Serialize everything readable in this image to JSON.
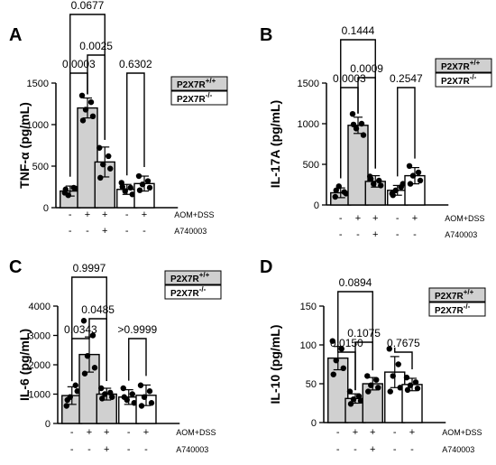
{
  "figure": {
    "legend_entries": [
      "P2X7R+/+",
      "P2X7R-/-"
    ],
    "row_labels": [
      "AOM+DSS",
      "A740003"
    ]
  },
  "chart_data": [
    {
      "panel": "A",
      "type": "bar",
      "ylabel": "TNF-α (pg/mL)",
      "ylim": [
        0,
        1500
      ],
      "yticks": [
        0,
        500,
        1000,
        1500
      ],
      "grid": false,
      "legend": "right",
      "categories": [
        "-/-",
        "+/-",
        "+/+",
        "-/-",
        "+/-",
        "+/+"
      ],
      "treatment_rows": [
        {
          "label": "AOM+DSS",
          "values": [
            "-",
            "+",
            "+",
            "-",
            "+",
            "+"
          ]
        },
        {
          "label": "A740003",
          "values": [
            "-",
            "-",
            "+",
            "-",
            "-",
            "+"
          ]
        }
      ],
      "series": [
        {
          "name": "P2X7R+/+",
          "color": "#d0d0d0",
          "means": [
            200,
            1200,
            550
          ],
          "errors": [
            60,
            120,
            180
          ],
          "points": [
            [
              180,
              240,
              150,
              230,
              220
            ],
            [
              1350,
              1270,
              1180,
              1100,
              1050
            ],
            [
              720,
              620,
              520,
              470,
              360
            ]
          ]
        },
        {
          "name": "P2X7R-/-",
          "color": "#ffffff",
          "means": [
            220,
            290
          ],
          "errors": [
            60,
            90
          ],
          "points": [
            [
              300,
              240,
              200,
              160,
              250
            ],
            [
              380,
              320,
              280,
              240,
              210
            ]
          ]
        }
      ],
      "comparisons": [
        {
          "label": "0.0677",
          "from": 0,
          "to": 2
        },
        {
          "label": "0.0003",
          "from": 0,
          "to": 1
        },
        {
          "label": "0.0025",
          "from": 1,
          "to": 2
        },
        {
          "label": "0.6302",
          "from": 1,
          "to": 2
        }
      ]
    },
    {
      "panel": "B",
      "type": "bar",
      "ylabel": "IL-17A (pg/mL)",
      "ylim": [
        0,
        1500
      ],
      "yticks": [
        0,
        500,
        1000,
        1500
      ],
      "grid": false,
      "legend": "right",
      "categories": [
        "-/-",
        "+/-",
        "+/+",
        "-/-",
        "+/-",
        "+/+"
      ],
      "treatment_rows": [
        {
          "label": "AOM+DSS",
          "values": [
            "-",
            "+",
            "+",
            "-",
            "+",
            "+"
          ]
        },
        {
          "label": "A740003",
          "values": [
            "-",
            "-",
            "+",
            "-",
            "-",
            "+"
          ]
        }
      ],
      "series": [
        {
          "name": "P2X7R+/+",
          "color": "#d0d0d0",
          "means": [
            150,
            980,
            290
          ],
          "errors": [
            60,
            100,
            70
          ],
          "points": [
            [
              100,
              160,
              230,
              140,
              180
            ],
            [
              1120,
              1000,
              940,
              860,
              990
            ],
            [
              350,
              300,
              260,
              240,
              320
            ]
          ]
        },
        {
          "name": "P2X7R-/-",
          "color": "#ffffff",
          "means": [
            180,
            360
          ],
          "errors": [
            60,
            100
          ],
          "points": [
            [
              140,
              220,
              180,
              260,
              120
            ],
            [
              480,
              400,
              360,
              300,
              260
            ]
          ]
        }
      ],
      "comparisons": [
        {
          "label": "0.1444",
          "from": 0,
          "to": 2
        },
        {
          "label": "0.0003",
          "from": 0,
          "to": 1
        },
        {
          "label": "0.0009",
          "from": 1,
          "to": 2
        },
        {
          "label": "0.2547",
          "from": 1,
          "to": 2
        }
      ]
    },
    {
      "panel": "C",
      "type": "bar",
      "ylabel": "IL-6 (pg/mL)",
      "ylim": [
        0,
        4000
      ],
      "yticks": [
        0,
        1000,
        2000,
        3000,
        4000
      ],
      "grid": false,
      "legend": "right",
      "categories": [
        "-/-",
        "+/-",
        "+/+",
        "-/-",
        "+/-",
        "+/+"
      ],
      "treatment_rows": [
        {
          "label": "AOM+DSS",
          "values": [
            "-",
            "+",
            "+",
            "-",
            "+",
            "+"
          ]
        },
        {
          "label": "A740003",
          "values": [
            "-",
            "-",
            "+",
            "-",
            "-",
            "+"
          ]
        }
      ],
      "series": [
        {
          "name": "P2X7R+/+",
          "color": "#d0d0d0",
          "means": [
            950,
            2350,
            1000
          ],
          "errors": [
            300,
            600,
            200
          ],
          "points": [
            [
              600,
              1300,
              900,
              1100,
              800
            ],
            [
              3500,
              3000,
              2300,
              1900,
              1700
            ],
            [
              1200,
              1050,
              1000,
              900,
              850
            ]
          ]
        },
        {
          "name": "P2X7R-/-",
          "color": "#ffffff",
          "means": [
            900,
            960
          ],
          "errors": [
            250,
            350
          ],
          "points": [
            [
              1200,
              1000,
              800,
              700,
              900
            ],
            [
              1300,
              1100,
              900,
              700,
              600
            ]
          ]
        }
      ],
      "comparisons": [
        {
          "label": "0.9997",
          "from": 0,
          "to": 2
        },
        {
          "label": "0.0343",
          "from": 0,
          "to": 1
        },
        {
          "label": "0.0485",
          "from": 1,
          "to": 2
        },
        {
          "label": ">0.9999",
          "from": 1,
          "to": 2
        }
      ]
    },
    {
      "panel": "D",
      "type": "bar",
      "ylabel": "IL-10 (pg/mL)",
      "ylim": [
        0,
        150
      ],
      "yticks": [
        0,
        50,
        100,
        150
      ],
      "grid": false,
      "legend": "right",
      "categories": [
        "-/-",
        "+/-",
        "+/+",
        "-/-",
        "+/-",
        "+/+"
      ],
      "treatment_rows": [
        {
          "label": "AOM+DSS",
          "values": [
            "-",
            "+",
            "+",
            "-",
            "+",
            "+"
          ]
        },
        {
          "label": "A740003",
          "values": [
            "-",
            "-",
            "+",
            "-",
            "-",
            "+"
          ]
        }
      ],
      "series": [
        {
          "name": "P2X7R+/+",
          "color": "#d0d0d0",
          "means": [
            83,
            31,
            50
          ],
          "errors": [
            15,
            6,
            8
          ],
          "points": [
            [
              105,
              95,
              80,
              70,
              62
            ],
            [
              40,
              34,
              30,
              28,
              24
            ],
            [
              60,
              55,
              48,
              45,
              40
            ]
          ]
        },
        {
          "name": "P2X7R-/-",
          "color": "#ffffff",
          "means": [
            65,
            49
          ],
          "errors": [
            20,
            8
          ],
          "points": [
            [
              95,
              75,
              60,
              45,
              40
            ],
            [
              58,
              52,
              48,
              44,
              42
            ]
          ]
        }
      ],
      "comparisons": [
        {
          "label": "0.0894",
          "from": 0,
          "to": 2
        },
        {
          "label": "0.0150",
          "from": 0,
          "to": 1
        },
        {
          "label": "0.1075",
          "from": 1,
          "to": 2
        },
        {
          "label": "0.7675",
          "from": 1,
          "to": 2
        }
      ]
    }
  ]
}
